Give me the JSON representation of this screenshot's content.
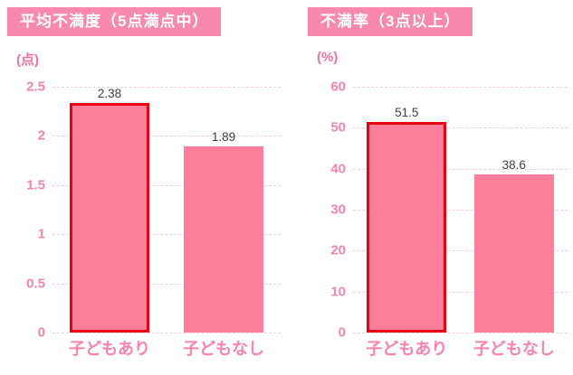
{
  "colors": {
    "title_bg": "#f888ac",
    "title_text": "#ffffff",
    "bar_fill": "#fc7e9b",
    "highlight_border": "#e60012",
    "tick_text": "#f285ac",
    "category_text": "#f983ab",
    "unit_text": "#f2719d",
    "gridline": "#f8cdda",
    "value_text": "#404040"
  },
  "charts": [
    {
      "title": "平均不満度（5点満点中）",
      "unit": "(点)",
      "ymax": 2.5,
      "ticks": [
        2.5,
        2,
        1.5,
        1,
        0.5,
        0
      ],
      "tick_labels": [
        "2.5",
        "2",
        "1.5",
        "1",
        "0.5",
        "0"
      ],
      "bars": [
        {
          "category": "子どもあり",
          "value": 2.38,
          "label": "2.38",
          "highlighted": true
        },
        {
          "category": "子どもなし",
          "value": 1.89,
          "label": "1.89",
          "highlighted": false
        }
      ]
    },
    {
      "title": "不満率（3点以上）",
      "unit": "(%)",
      "ymax": 60,
      "ticks": [
        60,
        50,
        40,
        30,
        20,
        10,
        0
      ],
      "tick_labels": [
        "60",
        "50",
        "40",
        "30",
        "20",
        "10",
        "0"
      ],
      "bars": [
        {
          "category": "子どもあり",
          "value": 51.5,
          "label": "51.5",
          "highlighted": true
        },
        {
          "category": "子どもなし",
          "value": 38.6,
          "label": "38.6",
          "highlighted": false
        }
      ]
    }
  ],
  "chart_data": [
    {
      "type": "bar",
      "title": "平均不満度（5点満点中）",
      "xlabel": "",
      "ylabel": "点",
      "categories": [
        "子どもあり",
        "子どもなし"
      ],
      "values": [
        2.38,
        1.89
      ],
      "ylim": [
        0,
        2.5
      ],
      "ytick_step": 0.5,
      "grid": true,
      "legend": false,
      "highlighted_category": "子どもあり"
    },
    {
      "type": "bar",
      "title": "不満率（3点以上）",
      "xlabel": "",
      "ylabel": "%",
      "categories": [
        "子どもあり",
        "子どもなし"
      ],
      "values": [
        51.5,
        38.6
      ],
      "ylim": [
        0,
        60
      ],
      "ytick_step": 10,
      "grid": true,
      "legend": false,
      "highlighted_category": "子どもあり"
    }
  ]
}
